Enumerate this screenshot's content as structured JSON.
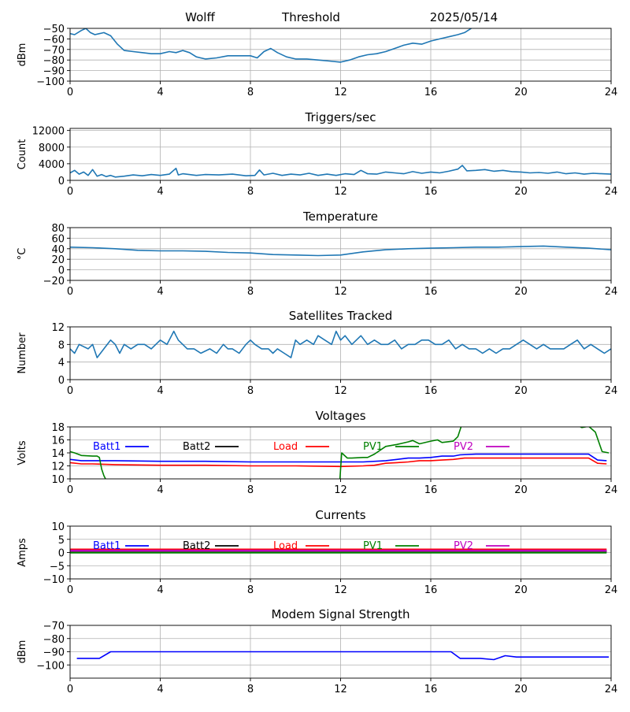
{
  "header": {
    "station": "Wolff",
    "type": "Threshold",
    "date": "2025/05/14"
  },
  "colors": {
    "default_line": "#1f77b4",
    "grid": "#b0b0b0",
    "batt1": "#0000ff",
    "batt2": "#000000",
    "load": "#ff0000",
    "pv1": "#008000",
    "pv2": "#bf00bf"
  },
  "chart_data": [
    {
      "type": "line",
      "title": "",
      "xlabel": "",
      "ylabel": "dBm",
      "xlim": [
        0,
        24
      ],
      "ylim": [
        -100,
        -50
      ],
      "xticks": [
        0,
        4,
        8,
        12,
        16,
        20,
        24
      ],
      "yticks": [
        -100,
        -90,
        -80,
        -70,
        -60,
        -50
      ],
      "grid": true,
      "series": [
        {
          "color": "default_line",
          "x": [
            0,
            0.2,
            0.5,
            0.7,
            0.9,
            1.1,
            1.3,
            1.5,
            1.8,
            2.1,
            2.4,
            2.8,
            3.2,
            3.6,
            4.0,
            4.4,
            4.7,
            5.0,
            5.3,
            5.6,
            6.0,
            6.5,
            7.0,
            7.5,
            8.0,
            8.3,
            8.6,
            8.9,
            9.2,
            9.6,
            10.0,
            10.5,
            11.0,
            11.5,
            12.0,
            12.4,
            12.8,
            13.2,
            13.6,
            14.0,
            14.4,
            14.8,
            15.2,
            15.6,
            16.0,
            16.4,
            16.8,
            17.2,
            17.5,
            17.8
          ],
          "y": [
            -55,
            -56,
            -52,
            -50,
            -54,
            -56,
            -55,
            -54,
            -57,
            -65,
            -71,
            -72,
            -73,
            -74,
            -74,
            -72,
            -73,
            -71,
            -73,
            -77,
            -79,
            -78,
            -76,
            -76,
            -76,
            -78,
            -72,
            -69,
            -73,
            -77,
            -79,
            -79,
            -80,
            -81,
            -82,
            -80,
            -77,
            -75,
            -74,
            -72,
            -69,
            -66,
            -64,
            -65,
            -62,
            -60,
            -58,
            -56,
            -54,
            -50
          ]
        }
      ]
    },
    {
      "type": "line",
      "title": "Triggers/sec",
      "xlabel": "",
      "ylabel": "Count",
      "xlim": [
        0,
        24
      ],
      "ylim": [
        0,
        12500
      ],
      "xticks": [
        0,
        4,
        8,
        12,
        16,
        20,
        24
      ],
      "yticks": [
        0,
        4000,
        8000,
        12000
      ],
      "grid": true,
      "series": [
        {
          "color": "default_line",
          "x": [
            0,
            0.2,
            0.4,
            0.6,
            0.8,
            1.0,
            1.2,
            1.4,
            1.6,
            1.8,
            2.0,
            2.4,
            2.8,
            3.2,
            3.6,
            4.0,
            4.4,
            4.7,
            4.8,
            5.0,
            5.6,
            6.0,
            6.6,
            7.2,
            7.8,
            8.2,
            8.4,
            8.6,
            9.0,
            9.4,
            9.8,
            10.2,
            10.6,
            11.0,
            11.4,
            11.8,
            12.2,
            12.6,
            12.9,
            13.2,
            13.6,
            14.0,
            14.4,
            14.8,
            15.2,
            15.6,
            16.0,
            16.4,
            16.8,
            17.2,
            17.4,
            17.6,
            18.0,
            18.4,
            18.8,
            19.2,
            19.6,
            20.0,
            20.4,
            20.8,
            21.2,
            21.6,
            22.0,
            22.4,
            22.8,
            23.2,
            23.6,
            24.0
          ],
          "y": [
            1800,
            2400,
            1500,
            2000,
            1200,
            2600,
            1000,
            1400,
            900,
            1200,
            800,
            1000,
            1300,
            1100,
            1400,
            1200,
            1500,
            2900,
            1300,
            1600,
            1200,
            1400,
            1300,
            1500,
            1100,
            1200,
            2500,
            1300,
            1700,
            1200,
            1500,
            1300,
            1700,
            1200,
            1500,
            1200,
            1600,
            1400,
            2400,
            1600,
            1500,
            2000,
            1800,
            1600,
            2100,
            1700,
            2000,
            1800,
            2200,
            2700,
            3600,
            2300,
            2400,
            2600,
            2200,
            2400,
            2100,
            2000,
            1800,
            1900,
            1700,
            2000,
            1600,
            1800,
            1500,
            1700,
            1600,
            1500
          ]
        }
      ]
    },
    {
      "type": "line",
      "title": "Temperature",
      "xlabel": "",
      "ylabel": "°C",
      "xlim": [
        0,
        24
      ],
      "ylim": [
        -20,
        80
      ],
      "xticks": [
        0,
        4,
        8,
        12,
        16,
        20,
        24
      ],
      "yticks": [
        -20,
        0,
        20,
        40,
        60,
        80
      ],
      "grid": true,
      "series": [
        {
          "color": "default_line",
          "x": [
            0,
            1,
            2,
            3,
            4,
            5,
            6,
            7,
            8,
            9,
            10,
            11,
            12,
            13,
            14,
            15,
            16,
            17,
            18,
            19,
            20,
            21,
            22,
            23,
            24
          ],
          "y": [
            43,
            42,
            40,
            37,
            36,
            36,
            35,
            33,
            32,
            29,
            28,
            27,
            28,
            34,
            38,
            40,
            41,
            42,
            43,
            43,
            44,
            45,
            43,
            41,
            38
          ]
        }
      ]
    },
    {
      "type": "line",
      "title": "Satellites Tracked",
      "xlabel": "",
      "ylabel": "Number",
      "xlim": [
        0,
        24
      ],
      "ylim": [
        0,
        12
      ],
      "xticks": [
        0,
        4,
        8,
        12,
        16,
        20,
        24
      ],
      "yticks": [
        0,
        4,
        8,
        12
      ],
      "grid": true,
      "series": [
        {
          "color": "default_line",
          "x": [
            0,
            0.2,
            0.4,
            0.8,
            1.0,
            1.2,
            1.5,
            1.8,
            2.0,
            2.2,
            2.4,
            2.7,
            3.0,
            3.3,
            3.6,
            4.0,
            4.3,
            4.6,
            4.7,
            4.8,
            5.0,
            5.2,
            5.5,
            5.8,
            6.2,
            6.5,
            6.8,
            7.0,
            7.2,
            7.5,
            7.8,
            8.0,
            8.2,
            8.5,
            8.8,
            9.0,
            9.2,
            9.5,
            9.8,
            10.0,
            10.2,
            10.5,
            10.8,
            11.0,
            11.3,
            11.6,
            11.8,
            12.0,
            12.2,
            12.5,
            12.7,
            12.9,
            13.2,
            13.5,
            13.8,
            14.1,
            14.4,
            14.7,
            15.0,
            15.3,
            15.6,
            15.9,
            16.2,
            16.5,
            16.8,
            17.1,
            17.4,
            17.7,
            18.0,
            18.3,
            18.6,
            18.9,
            19.2,
            19.5,
            19.8,
            20.1,
            20.4,
            20.7,
            21.0,
            21.3,
            21.6,
            21.9,
            22.2,
            22.5,
            22.8,
            23.1,
            23.4,
            23.7,
            24.0
          ],
          "y": [
            7,
            6,
            8,
            7,
            8,
            5,
            7,
            9,
            8,
            6,
            8,
            7,
            8,
            8,
            7,
            9,
            8,
            11,
            10,
            9,
            8,
            7,
            7,
            6,
            7,
            6,
            8,
            7,
            7,
            6,
            8,
            9,
            8,
            7,
            7,
            6,
            7,
            6,
            5,
            9,
            8,
            9,
            8,
            10,
            9,
            8,
            11,
            9,
            10,
            8,
            9,
            10,
            8,
            9,
            8,
            8,
            9,
            7,
            8,
            8,
            9,
            9,
            8,
            8,
            9,
            7,
            8,
            7,
            7,
            6,
            7,
            6,
            7,
            7,
            8,
            9,
            8,
            7,
            8,
            7,
            7,
            7,
            8,
            9,
            7,
            8,
            7,
            6,
            7
          ]
        }
      ]
    },
    {
      "type": "line",
      "title": "Voltages",
      "xlabel": "",
      "ylabel": "Volts",
      "xlim": [
        0,
        24
      ],
      "ylim": [
        10,
        18
      ],
      "xticks": [
        0,
        4,
        8,
        12,
        16,
        20,
        24
      ],
      "yticks": [
        10,
        12,
        14,
        16,
        18
      ],
      "grid": true,
      "legend": "top-inline",
      "series": [
        {
          "name": "Batt1",
          "color": "batt1",
          "x": [
            0,
            0.5,
            1,
            2,
            4,
            6,
            8,
            10,
            12,
            13,
            14,
            14.5,
            15,
            15.5,
            16,
            16.5,
            17,
            17.3,
            18,
            20,
            22,
            23,
            23.4,
            23.8
          ],
          "y": [
            13.0,
            12.8,
            12.8,
            12.8,
            12.7,
            12.7,
            12.6,
            12.6,
            12.6,
            12.6,
            12.8,
            13.0,
            13.2,
            13.2,
            13.3,
            13.5,
            13.5,
            13.7,
            13.8,
            13.8,
            13.8,
            13.8,
            12.9,
            12.8
          ]
        },
        {
          "name": "Batt2",
          "color": "batt2",
          "x": [],
          "y": []
        },
        {
          "name": "Load",
          "color": "load",
          "x": [
            0,
            0.5,
            1,
            2,
            4,
            6,
            8,
            10,
            12,
            13,
            13.5,
            14,
            14.5,
            15,
            15.5,
            16,
            16.5,
            17,
            17.5,
            18,
            20,
            22,
            23,
            23.4,
            23.8
          ],
          "y": [
            12.5,
            12.3,
            12.3,
            12.2,
            12.1,
            12.1,
            12.0,
            12.0,
            11.9,
            12.0,
            12.1,
            12.4,
            12.5,
            12.6,
            12.8,
            12.8,
            12.9,
            13.0,
            13.2,
            13.2,
            13.2,
            13.2,
            13.2,
            12.4,
            12.3
          ]
        },
        {
          "name": "PV1",
          "color": "pv1",
          "x": [
            0,
            0.2,
            0.5,
            1.0,
            1.2,
            1.3,
            1.4,
            1.5,
            1.6,
            1.65,
            11.95,
            12.05,
            12.3,
            12.5,
            13,
            13.2,
            13.5,
            14,
            14.5,
            15,
            15.2,
            15.5,
            16,
            16.3,
            16.5,
            17,
            17.2,
            17.4,
            22.3,
            22.7,
            23.0,
            23.3,
            23.6,
            23.9
          ],
          "y": [
            14.2,
            14.0,
            13.6,
            13.5,
            13.5,
            13.3,
            11.5,
            10.5,
            9.8,
            9.0,
            9.0,
            14.0,
            13.2,
            13.2,
            13.3,
            13.3,
            13.8,
            15.0,
            15.3,
            15.7,
            15.9,
            15.4,
            15.8,
            16.0,
            15.6,
            15.8,
            16.5,
            18.6,
            18.6,
            17.9,
            18.1,
            17.2,
            14.2,
            14.0
          ]
        },
        {
          "name": "PV2",
          "color": "pv2",
          "x": [],
          "y": []
        }
      ]
    },
    {
      "type": "line",
      "title": "Currents",
      "xlabel": "",
      "ylabel": "Amps",
      "xlim": [
        0,
        24
      ],
      "ylim": [
        -10,
        10
      ],
      "xticks": [
        0,
        4,
        8,
        12,
        16,
        20,
        24
      ],
      "yticks": [
        -10,
        -5,
        0,
        5,
        10
      ],
      "grid": true,
      "legend": "top-inline",
      "series": [
        {
          "name": "Batt1",
          "color": "batt1",
          "x": [
            0,
            23.8
          ],
          "y": [
            0.3,
            0.3
          ]
        },
        {
          "name": "Batt2",
          "color": "batt2",
          "x": [
            0,
            23.8
          ],
          "y": [
            0.5,
            0.5
          ]
        },
        {
          "name": "Load",
          "color": "load",
          "x": [
            0,
            23.8
          ],
          "y": [
            1.1,
            1.1
          ]
        },
        {
          "name": "PV1",
          "color": "pv1",
          "x": [
            0,
            23.8
          ],
          "y": [
            0.0,
            0.0
          ]
        },
        {
          "name": "PV2",
          "color": "pv2",
          "x": [
            0,
            23.8
          ],
          "y": [
            0.7,
            0.7
          ]
        }
      ]
    },
    {
      "type": "line",
      "title": "Modem Signal Strength",
      "xlabel": "",
      "ylabel": "dBm",
      "xlim": [
        0,
        24
      ],
      "ylim": [
        -110,
        -70
      ],
      "xticks": [
        0,
        4,
        8,
        12,
        16,
        20,
        24
      ],
      "yticks": [
        -100,
        -90,
        -80,
        -70
      ],
      "grid": true,
      "series": [
        {
          "color": "batt1",
          "x": [
            0.3,
            1.3,
            1.8,
            2.5,
            4,
            8,
            12,
            16,
            16.9,
            17.3,
            18.2,
            18.8,
            19.3,
            19.8,
            20.5,
            22,
            23.9
          ],
          "y": [
            -95,
            -95,
            -90,
            -90,
            -90,
            -90,
            -90,
            -90,
            -90,
            -95,
            -95,
            -96,
            -93,
            -94,
            -94,
            -94,
            -94
          ]
        }
      ]
    }
  ]
}
